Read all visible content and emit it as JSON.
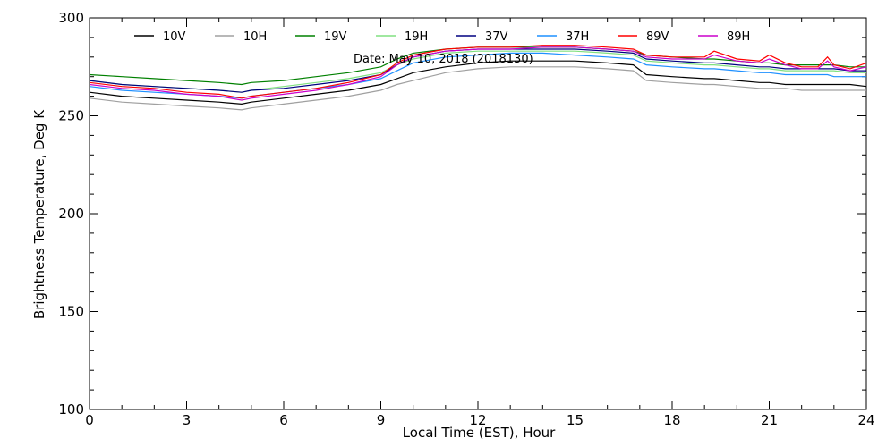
{
  "chart_data": {
    "type": "line",
    "annotation": "Date: May 10, 2018 (2018130)",
    "xlabel": "Local Time (EST), Hour",
    "ylabel": "Brightness Temperature, Deg K",
    "xlim": [
      0,
      24
    ],
    "ylim": [
      100,
      300
    ],
    "xticks": [
      0,
      3,
      6,
      9,
      12,
      15,
      18,
      21,
      24
    ],
    "yticks": [
      100,
      150,
      200,
      250,
      300
    ],
    "grid": false,
    "legend_position": "top",
    "x": [
      0,
      1,
      2,
      3,
      4,
      4.7,
      5,
      6,
      7,
      8,
      9,
      9.5,
      10,
      11,
      12,
      13,
      14,
      15,
      16,
      16.8,
      17.2,
      18,
      19,
      19.3,
      20,
      20.7,
      21,
      21.5,
      22,
      22.5,
      22.8,
      23,
      23.5,
      24
    ],
    "series": [
      {
        "name": "10V",
        "color": "#000000",
        "values": [
          262,
          260,
          259,
          258,
          257,
          256,
          257,
          259,
          261,
          263,
          266,
          269,
          272,
          275,
          277,
          278,
          278,
          278,
          277,
          276,
          271,
          270,
          269,
          269,
          268,
          267,
          267,
          266,
          266,
          266,
          266,
          266,
          266,
          265
        ]
      },
      {
        "name": "10H",
        "color": "#a0a0a0",
        "values": [
          259,
          257,
          256,
          255,
          254,
          253,
          254,
          256,
          258,
          260,
          263,
          266,
          268,
          272,
          274,
          275,
          275,
          275,
          274,
          273,
          268,
          267,
          266,
          266,
          265,
          264,
          264,
          264,
          263,
          263,
          263,
          263,
          263,
          263
        ]
      },
      {
        "name": "19V",
        "color": "#008000",
        "values": [
          271,
          270,
          269,
          268,
          267,
          266,
          267,
          268,
          270,
          272,
          275,
          279,
          282,
          284,
          285,
          285,
          285,
          285,
          284,
          283,
          281,
          280,
          279,
          279,
          278,
          277,
          277,
          276,
          276,
          276,
          276,
          276,
          275,
          275
        ]
      },
      {
        "name": "19H",
        "color": "#80e080",
        "values": [
          268,
          266,
          265,
          264,
          263,
          262,
          263,
          265,
          267,
          269,
          272,
          276,
          279,
          282,
          283,
          283,
          283,
          283,
          282,
          281,
          278,
          277,
          276,
          276,
          275,
          274,
          274,
          273,
          273,
          273,
          273,
          273,
          272,
          272
        ]
      },
      {
        "name": "37V",
        "color": "#000080",
        "values": [
          268,
          266,
          265,
          264,
          263,
          262,
          263,
          264,
          266,
          268,
          271,
          276,
          280,
          283,
          284,
          284,
          284,
          284,
          283,
          282,
          279,
          278,
          277,
          277,
          276,
          275,
          275,
          274,
          274,
          274,
          274,
          274,
          273,
          273
        ]
      },
      {
        "name": "37H",
        "color": "#1e90ff",
        "values": [
          265,
          263,
          262,
          261,
          260,
          259,
          260,
          262,
          264,
          266,
          269,
          273,
          277,
          280,
          281,
          282,
          282,
          281,
          280,
          279,
          276,
          275,
          274,
          274,
          273,
          272,
          272,
          271,
          271,
          271,
          271,
          270,
          270,
          270
        ]
      },
      {
        "name": "89V",
        "color": "#ff0000",
        "values": [
          267,
          265,
          264,
          262,
          261,
          259,
          260,
          262,
          264,
          267,
          271,
          277,
          281,
          284,
          285,
          285,
          286,
          286,
          285,
          284,
          281,
          280,
          280,
          283,
          279,
          278,
          281,
          277,
          275,
          275,
          280,
          276,
          274,
          277
        ]
      },
      {
        "name": "89H",
        "color": "#cc00cc",
        "values": [
          266,
          264,
          263,
          261,
          260,
          258,
          259,
          261,
          263,
          266,
          270,
          276,
          280,
          283,
          284,
          284,
          285,
          285,
          284,
          283,
          280,
          279,
          279,
          281,
          278,
          277,
          279,
          276,
          274,
          274,
          278,
          275,
          273,
          275
        ]
      }
    ]
  }
}
